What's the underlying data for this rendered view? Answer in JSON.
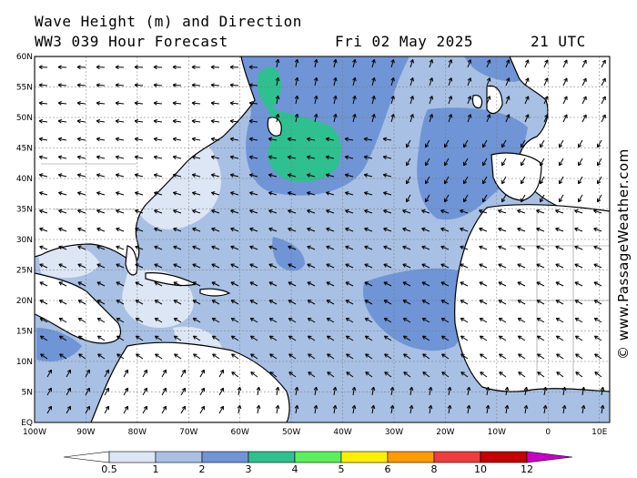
{
  "header": {
    "line1": "Wave Height (m) and Direction",
    "line2": "WW3 039 Hour Forecast",
    "date": "Fri 02 May 2025",
    "time": "21 UTC"
  },
  "credit": "© www.PassageWeather.com",
  "axes": {
    "lat_labels": [
      "60N",
      "55N",
      "50N",
      "45N",
      "40N",
      "35N",
      "30N",
      "25N",
      "20N",
      "15N",
      "10N",
      "5N",
      "EQ"
    ],
    "lon_labels": [
      "100W",
      "90W",
      "80W",
      "70W",
      "60W",
      "50W",
      "40W",
      "30W",
      "20W",
      "10W",
      "0",
      "10E"
    ]
  },
  "legend": {
    "values": [
      "0.5",
      "1",
      "2",
      "3",
      "4",
      "5",
      "6",
      "8",
      "10",
      "12"
    ],
    "colors": [
      "#ffffff",
      "#dde6f5",
      "#a8c0e4",
      "#6f95d6",
      "#2fc08f",
      "#5cf05c",
      "#fff000",
      "#ff9a00",
      "#ef3d3d",
      "#c40000",
      "#c800c8"
    ]
  },
  "map": {
    "land_color": "#ffffff",
    "sea_color": "#a8c0e4",
    "calm_color": "#dde6f5",
    "moderate_color": "#6f95d6",
    "high_color": "#2fc08f",
    "arrow_color": "#000000"
  }
}
